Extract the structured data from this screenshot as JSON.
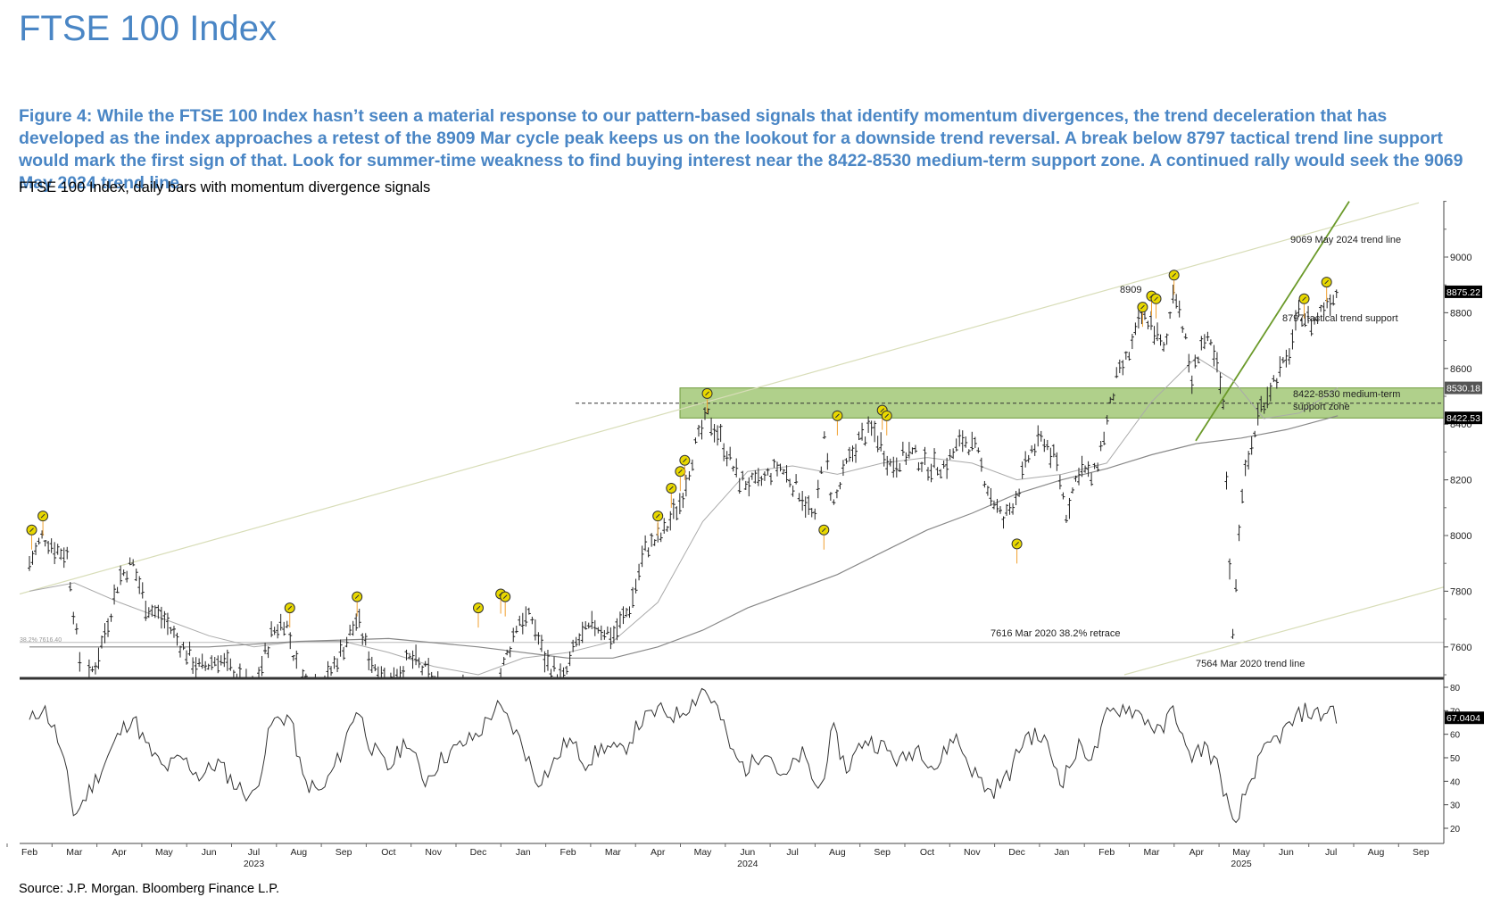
{
  "page_title": "FTSE 100 Index",
  "caption": "Figure 4: While the FTSE 100 Index hasn’t seen a material response to our pattern-based signals that identify momentum divergences, the trend deceleration that has developed as the index approaches a retest of the 8909 Mar cycle peak keeps us on the lookout for a downside trend reversal. A break below 8797 tactical trend line support would mark the first sign of that. Look for summer-time weakness to find buying interest near the 8422-8530 medium-term support zone. A continued rally would seek the 9069 May 2024 trend line.",
  "subtitle": "FTSE 100 Index, daily bars with momentum divergence signals",
  "source": "Source: J.P. Morgan. Bloomberg Finance L.P.",
  "colors": {
    "title": "#4a86c5",
    "support_zone": "#8fbc5a",
    "trend_line": "#6b9a2a",
    "channel": "#d8ddb8",
    "moving_average": "#888888",
    "signal_marker": "#e8d800"
  },
  "chart_data": [
    {
      "type": "line",
      "subtype": "ohlc-bars",
      "y_ticks": [
        7600,
        7800,
        8000,
        8200,
        8400,
        8600,
        8800,
        9000
      ],
      "ylim": [
        7500,
        9200
      ],
      "x_months": [
        "Feb",
        "Mar",
        "Apr",
        "May",
        "Jun",
        "Jul",
        "Aug",
        "Sep",
        "Oct",
        "Nov",
        "Dec",
        "Jan",
        "Feb",
        "Mar",
        "Apr",
        "May",
        "Jun",
        "Jul",
        "Aug",
        "Sep",
        "Oct",
        "Nov",
        "Dec",
        "Jan",
        "Feb",
        "Mar",
        "Apr",
        "May",
        "Jun",
        "Jul",
        "Aug",
        "Sep"
      ],
      "x_years": [
        {
          "label": "2023",
          "month_index": 5
        },
        {
          "label": "2024",
          "month_index": 16
        },
        {
          "label": "2025",
          "month_index": 27
        }
      ],
      "price_path": [
        {
          "t": 0,
          "v": 7900
        },
        {
          "t": 0.3,
          "v": 8000
        },
        {
          "t": 0.6,
          "v": 7950
        },
        {
          "t": 0.85,
          "v": 7930
        },
        {
          "t": 1.0,
          "v": 7700
        },
        {
          "t": 1.2,
          "v": 7450
        },
        {
          "t": 1.5,
          "v": 7550
        },
        {
          "t": 1.8,
          "v": 7720
        },
        {
          "t": 2.0,
          "v": 7850
        },
        {
          "t": 2.3,
          "v": 7900
        },
        {
          "t": 2.6,
          "v": 7750
        },
        {
          "t": 3.0,
          "v": 7700
        },
        {
          "t": 3.4,
          "v": 7600
        },
        {
          "t": 3.8,
          "v": 7520
        },
        {
          "t": 4.2,
          "v": 7560
        },
        {
          "t": 4.6,
          "v": 7500
        },
        {
          "t": 5.0,
          "v": 7440
        },
        {
          "t": 5.4,
          "v": 7650
        },
        {
          "t": 5.7,
          "v": 7700
        },
        {
          "t": 6.0,
          "v": 7500
        },
        {
          "t": 6.5,
          "v": 7450
        },
        {
          "t": 7.0,
          "v": 7600
        },
        {
          "t": 7.3,
          "v": 7700
        },
        {
          "t": 7.6,
          "v": 7550
        },
        {
          "t": 8.0,
          "v": 7480
        },
        {
          "t": 8.5,
          "v": 7560
        },
        {
          "t": 8.9,
          "v": 7500
        },
        {
          "t": 9.3,
          "v": 7420
        },
        {
          "t": 9.8,
          "v": 7450
        },
        {
          "t": 10.3,
          "v": 7400
        },
        {
          "t": 10.6,
          "v": 7550
        },
        {
          "t": 10.9,
          "v": 7700
        },
        {
          "t": 11.2,
          "v": 7700
        },
        {
          "t": 11.5,
          "v": 7550
        },
        {
          "t": 11.9,
          "v": 7480
        },
        {
          "t": 12.2,
          "v": 7620
        },
        {
          "t": 12.6,
          "v": 7680
        },
        {
          "t": 13.0,
          "v": 7640
        },
        {
          "t": 13.4,
          "v": 7750
        },
        {
          "t": 13.7,
          "v": 7950
        },
        {
          "t": 14.1,
          "v": 8000
        },
        {
          "t": 14.5,
          "v": 8120
        },
        {
          "t": 14.8,
          "v": 8300
        },
        {
          "t": 15.1,
          "v": 8430
        },
        {
          "t": 15.4,
          "v": 8350
        },
        {
          "t": 15.8,
          "v": 8200
        },
        {
          "t": 16.2,
          "v": 8180
        },
        {
          "t": 16.7,
          "v": 8250
        },
        {
          "t": 17.2,
          "v": 8150
        },
        {
          "t": 17.5,
          "v": 8050
        },
        {
          "t": 17.7,
          "v": 8350
        },
        {
          "t": 17.9,
          "v": 8100
        },
        {
          "t": 18.2,
          "v": 8250
        },
        {
          "t": 18.5,
          "v": 8350
        },
        {
          "t": 18.8,
          "v": 8380
        },
        {
          "t": 19.2,
          "v": 8250
        },
        {
          "t": 19.6,
          "v": 8300
        },
        {
          "t": 20.0,
          "v": 8250
        },
        {
          "t": 20.4,
          "v": 8250
        },
        {
          "t": 20.8,
          "v": 8350
        },
        {
          "t": 21.1,
          "v": 8300
        },
        {
          "t": 21.4,
          "v": 8150
        },
        {
          "t": 21.7,
          "v": 8050
        },
        {
          "t": 22.0,
          "v": 8150
        },
        {
          "t": 22.3,
          "v": 8300
        },
        {
          "t": 22.6,
          "v": 8350
        },
        {
          "t": 22.9,
          "v": 8250
        },
        {
          "t": 23.1,
          "v": 8080
        },
        {
          "t": 23.4,
          "v": 8250
        },
        {
          "t": 23.7,
          "v": 8200
        },
        {
          "t": 24.0,
          "v": 8400
        },
        {
          "t": 24.2,
          "v": 8550
        },
        {
          "t": 24.5,
          "v": 8650
        },
        {
          "t": 24.8,
          "v": 8800
        },
        {
          "t": 25.0,
          "v": 8760
        },
        {
          "t": 25.3,
          "v": 8650
        },
        {
          "t": 25.5,
          "v": 8909
        },
        {
          "t": 25.7,
          "v": 8750
        },
        {
          "t": 25.9,
          "v": 8550
        },
        {
          "t": 26.1,
          "v": 8700
        },
        {
          "t": 26.3,
          "v": 8680
        },
        {
          "t": 26.5,
          "v": 8580
        },
        {
          "t": 26.6,
          "v": 8450
        },
        {
          "t": 26.7,
          "v": 8100
        },
        {
          "t": 26.8,
          "v": 7600
        },
        {
          "t": 26.9,
          "v": 7900
        },
        {
          "t": 27.0,
          "v": 8150
        },
        {
          "t": 27.2,
          "v": 8300
        },
        {
          "t": 27.4,
          "v": 8450
        },
        {
          "t": 27.7,
          "v": 8550
        },
        {
          "t": 28.0,
          "v": 8620
        },
        {
          "t": 28.3,
          "v": 8800
        },
        {
          "t": 28.6,
          "v": 8760
        },
        {
          "t": 28.9,
          "v": 8840
        },
        {
          "t": 29.15,
          "v": 8875
        }
      ],
      "ma_short": [
        {
          "t": 0,
          "v": 7800
        },
        {
          "t": 1.0,
          "v": 7830
        },
        {
          "t": 2.0,
          "v": 7760
        },
        {
          "t": 3.0,
          "v": 7700
        },
        {
          "t": 4.0,
          "v": 7640
        },
        {
          "t": 5.0,
          "v": 7600
        },
        {
          "t": 6.0,
          "v": 7620
        },
        {
          "t": 7.0,
          "v": 7620
        },
        {
          "t": 8.0,
          "v": 7580
        },
        {
          "t": 9.0,
          "v": 7530
        },
        {
          "t": 10.0,
          "v": 7500
        },
        {
          "t": 11.0,
          "v": 7560
        },
        {
          "t": 12.0,
          "v": 7580
        },
        {
          "t": 13.0,
          "v": 7620
        },
        {
          "t": 14.0,
          "v": 7760
        },
        {
          "t": 15.0,
          "v": 8050
        },
        {
          "t": 16.0,
          "v": 8230
        },
        {
          "t": 17.0,
          "v": 8250
        },
        {
          "t": 18.0,
          "v": 8220
        },
        {
          "t": 19.0,
          "v": 8260
        },
        {
          "t": 20.0,
          "v": 8280
        },
        {
          "t": 21.0,
          "v": 8260
        },
        {
          "t": 22.0,
          "v": 8200
        },
        {
          "t": 23.0,
          "v": 8220
        },
        {
          "t": 24.0,
          "v": 8260
        },
        {
          "t": 25.0,
          "v": 8480
        },
        {
          "t": 26.0,
          "v": 8640
        },
        {
          "t": 26.8,
          "v": 8560
        },
        {
          "t": 27.5,
          "v": 8420
        },
        {
          "t": 28.3,
          "v": 8440
        },
        {
          "t": 29.15,
          "v": 8530
        }
      ],
      "ma_long": [
        {
          "t": 0,
          "v": 7600
        },
        {
          "t": 2.0,
          "v": 7600
        },
        {
          "t": 4.0,
          "v": 7600
        },
        {
          "t": 6.0,
          "v": 7620
        },
        {
          "t": 8.0,
          "v": 7630
        },
        {
          "t": 10.0,
          "v": 7600
        },
        {
          "t": 12.0,
          "v": 7560
        },
        {
          "t": 13.0,
          "v": 7560
        },
        {
          "t": 14.0,
          "v": 7600
        },
        {
          "t": 15.0,
          "v": 7660
        },
        {
          "t": 16.0,
          "v": 7740
        },
        {
          "t": 17.0,
          "v": 7800
        },
        {
          "t": 18.0,
          "v": 7860
        },
        {
          "t": 19.0,
          "v": 7940
        },
        {
          "t": 20.0,
          "v": 8020
        },
        {
          "t": 21.0,
          "v": 8080
        },
        {
          "t": 22.0,
          "v": 8150
        },
        {
          "t": 23.0,
          "v": 8200
        },
        {
          "t": 24.0,
          "v": 8240
        },
        {
          "t": 25.0,
          "v": 8290
        },
        {
          "t": 26.0,
          "v": 8330
        },
        {
          "t": 27.0,
          "v": 8350
        },
        {
          "t": 28.0,
          "v": 8380
        },
        {
          "t": 29.15,
          "v": 8430
        }
      ],
      "signals": [
        {
          "t": 0.05,
          "v": 8020
        },
        {
          "t": 0.3,
          "v": 8070
        },
        {
          "t": 5.8,
          "v": 7740
        },
        {
          "t": 7.3,
          "v": 7780
        },
        {
          "t": 10.0,
          "v": 7740
        },
        {
          "t": 10.5,
          "v": 7790
        },
        {
          "t": 10.6,
          "v": 7780
        },
        {
          "t": 14.0,
          "v": 8070
        },
        {
          "t": 14.3,
          "v": 8170
        },
        {
          "t": 14.5,
          "v": 8230
        },
        {
          "t": 14.6,
          "v": 8270
        },
        {
          "t": 15.1,
          "v": 8510
        },
        {
          "t": 17.7,
          "v": 8020
        },
        {
          "t": 18.0,
          "v": 8430
        },
        {
          "t": 19.0,
          "v": 8450
        },
        {
          "t": 19.1,
          "v": 8430
        },
        {
          "t": 22.0,
          "v": 7970
        },
        {
          "t": 24.8,
          "v": 8820
        },
        {
          "t": 25.0,
          "v": 8860
        },
        {
          "t": 25.1,
          "v": 8850
        },
        {
          "t": 25.5,
          "v": 8935
        },
        {
          "t": 28.4,
          "v": 8850
        },
        {
          "t": 28.9,
          "v": 8910
        }
      ],
      "support_zone": [
        8422,
        8530
      ],
      "dashed_level": 8475,
      "retrace_level": 7616,
      "price_tags": [
        "8875.22",
        "8530.18",
        "8422.53"
      ],
      "annotations": {
        "trend_line_2024": "9069 May 2024 trend line",
        "peak": "8909",
        "tactical": "8797 tactical trend support",
        "zone_line1": "8422-8530 medium-term",
        "zone_line2": "support zone",
        "retrace": "7616 Mar 2020 38.2% retrace",
        "trend_line_2020": "7564 Mar 2020 trend line",
        "left_label": "38.2% 7616.40"
      }
    },
    {
      "type": "line",
      "subtype": "momentum-oscillator",
      "y_ticks": [
        20,
        30,
        40,
        50,
        60,
        70,
        80
      ],
      "ylim": [
        15,
        82
      ],
      "last_value_tag": "67.0404",
      "values_path": [
        {
          "t": 0,
          "v": 65
        },
        {
          "t": 0.3,
          "v": 72
        },
        {
          "t": 0.6,
          "v": 60
        },
        {
          "t": 0.8,
          "v": 45
        },
        {
          "t": 1.0,
          "v": 25
        },
        {
          "t": 1.3,
          "v": 35
        },
        {
          "t": 1.6,
          "v": 45
        },
        {
          "t": 2.0,
          "v": 60
        },
        {
          "t": 2.3,
          "v": 68
        },
        {
          "t": 2.6,
          "v": 55
        },
        {
          "t": 3.0,
          "v": 45
        },
        {
          "t": 3.4,
          "v": 50
        },
        {
          "t": 3.8,
          "v": 42
        },
        {
          "t": 4.2,
          "v": 48
        },
        {
          "t": 4.6,
          "v": 38
        },
        {
          "t": 5.0,
          "v": 33
        },
        {
          "t": 5.4,
          "v": 65
        },
        {
          "t": 5.8,
          "v": 68
        },
        {
          "t": 6.1,
          "v": 40
        },
        {
          "t": 6.5,
          "v": 35
        },
        {
          "t": 6.9,
          "v": 50
        },
        {
          "t": 7.3,
          "v": 72
        },
        {
          "t": 7.6,
          "v": 55
        },
        {
          "t": 8.0,
          "v": 45
        },
        {
          "t": 8.4,
          "v": 58
        },
        {
          "t": 8.8,
          "v": 40
        },
        {
          "t": 9.2,
          "v": 50
        },
        {
          "t": 9.6,
          "v": 55
        },
        {
          "t": 10.0,
          "v": 60
        },
        {
          "t": 10.4,
          "v": 72
        },
        {
          "t": 10.7,
          "v": 65
        },
        {
          "t": 11.0,
          "v": 55
        },
        {
          "t": 11.3,
          "v": 40
        },
        {
          "t": 11.6,
          "v": 45
        },
        {
          "t": 12.0,
          "v": 58
        },
        {
          "t": 12.4,
          "v": 48
        },
        {
          "t": 12.8,
          "v": 55
        },
        {
          "t": 13.2,
          "v": 52
        },
        {
          "t": 13.6,
          "v": 65
        },
        {
          "t": 14.0,
          "v": 70
        },
        {
          "t": 14.4,
          "v": 68
        },
        {
          "t": 14.8,
          "v": 74
        },
        {
          "t": 15.0,
          "v": 80
        },
        {
          "t": 15.3,
          "v": 72
        },
        {
          "t": 15.7,
          "v": 50
        },
        {
          "t": 16.0,
          "v": 45
        },
        {
          "t": 16.4,
          "v": 55
        },
        {
          "t": 16.8,
          "v": 40
        },
        {
          "t": 17.2,
          "v": 52
        },
        {
          "t": 17.6,
          "v": 35
        },
        {
          "t": 17.9,
          "v": 62
        },
        {
          "t": 18.2,
          "v": 45
        },
        {
          "t": 18.6,
          "v": 58
        },
        {
          "t": 19.0,
          "v": 55
        },
        {
          "t": 19.4,
          "v": 48
        },
        {
          "t": 19.8,
          "v": 55
        },
        {
          "t": 20.2,
          "v": 45
        },
        {
          "t": 20.6,
          "v": 60
        },
        {
          "t": 21.0,
          "v": 45
        },
        {
          "t": 21.4,
          "v": 35
        },
        {
          "t": 21.8,
          "v": 42
        },
        {
          "t": 22.2,
          "v": 60
        },
        {
          "t": 22.6,
          "v": 58
        },
        {
          "t": 23.0,
          "v": 40
        },
        {
          "t": 23.4,
          "v": 55
        },
        {
          "t": 23.7,
          "v": 50
        },
        {
          "t": 24.0,
          "v": 68
        },
        {
          "t": 24.4,
          "v": 72
        },
        {
          "t": 24.8,
          "v": 68
        },
        {
          "t": 25.2,
          "v": 60
        },
        {
          "t": 25.5,
          "v": 72
        },
        {
          "t": 25.8,
          "v": 50
        },
        {
          "t": 26.2,
          "v": 55
        },
        {
          "t": 26.5,
          "v": 45
        },
        {
          "t": 26.7,
          "v": 30
        },
        {
          "t": 26.85,
          "v": 17
        },
        {
          "t": 27.0,
          "v": 30
        },
        {
          "t": 27.3,
          "v": 45
        },
        {
          "t": 27.6,
          "v": 55
        },
        {
          "t": 28.0,
          "v": 62
        },
        {
          "t": 28.4,
          "v": 70
        },
        {
          "t": 28.8,
          "v": 68
        },
        {
          "t": 29.0,
          "v": 72
        },
        {
          "t": 29.15,
          "v": 67
        }
      ]
    }
  ]
}
